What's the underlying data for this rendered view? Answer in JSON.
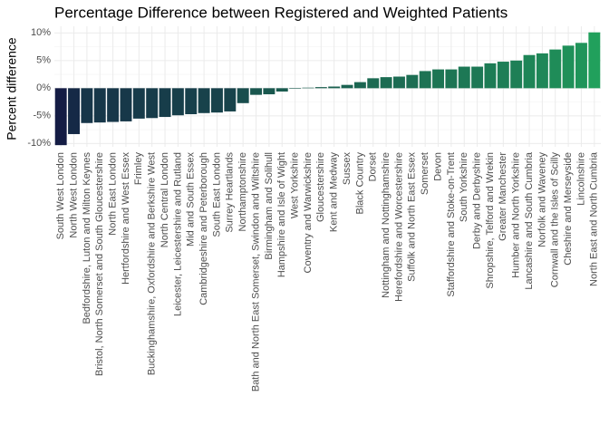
{
  "chart_data": {
    "type": "bar",
    "title": "Percentage Difference between Registered and Weighted Patients",
    "y_label": "Percent difference",
    "categories": [
      "South West London",
      "North West London",
      "Bedfordshire, Luton and Milton Keynes",
      "Bristol, North Somerset and South Gloucestershire",
      "North East London",
      "Hertfordshire and West Essex",
      "Frimley",
      "Buckinghamshire, Oxfordshire and Berkshire West",
      "North Central London",
      "Leicester, Leicestershire and Rutland",
      "Mid and South Essex",
      "Cambridgeshire and Peterborough",
      "South East London",
      "Surrey Heartlands",
      "Northamptonshire",
      "Bath and North East Somerset, Swindon and Wiltshire",
      "Birmingham and Solihull",
      "Hampshire and Isle of Wight",
      "West Yorkshire",
      "Coventry and Warwickshire",
      "Gloucestershire",
      "Kent and Medway",
      "Sussex",
      "Black Country",
      "Dorset",
      "Nottingham and Nottinghamshire",
      "Herefordshire and Worcestershire",
      "Suffolk and North East Essex",
      "Somerset",
      "Devon",
      "Staffordshire and Stoke-on-Trent",
      "South Yorkshire",
      "Derby and Derbyshire",
      "Shropshire, Telford and Wrekin",
      "Greater Manchester",
      "Humber and North Yorkshire",
      "Lancashire and South Cumbria",
      "Norfolk and Waveney",
      "Cornwall and the Isles of Scilly",
      "Cheshire and Merseyside",
      "Lincolnshire",
      "North East and North Cumbria"
    ],
    "values": [
      -10.3,
      -8.3,
      -6.3,
      -6.2,
      -6.1,
      -6.0,
      -5.5,
      -5.4,
      -5.2,
      -4.9,
      -4.7,
      -4.5,
      -4.4,
      -4.2,
      -2.7,
      -1.2,
      -1.1,
      -0.6,
      -0.1,
      0.1,
      0.2,
      0.3,
      0.6,
      1.1,
      1.8,
      2.0,
      2.1,
      2.4,
      3.1,
      3.4,
      3.4,
      3.9,
      3.9,
      4.5,
      4.8,
      5.0,
      6.0,
      6.3,
      7.0,
      7.7,
      8.2,
      10.1
    ],
    "color_low": "#141c44",
    "color_high": "#21a05c",
    "ylim": [
      -10.6,
      11.2
    ],
    "yticks": [
      {
        "value": -10,
        "label": "-10%"
      },
      {
        "value": -5,
        "label": "-5%"
      },
      {
        "value": 0,
        "label": "0%"
      },
      {
        "value": 5,
        "label": "5%"
      },
      {
        "value": 10,
        "label": "10%"
      }
    ],
    "grid": true
  }
}
